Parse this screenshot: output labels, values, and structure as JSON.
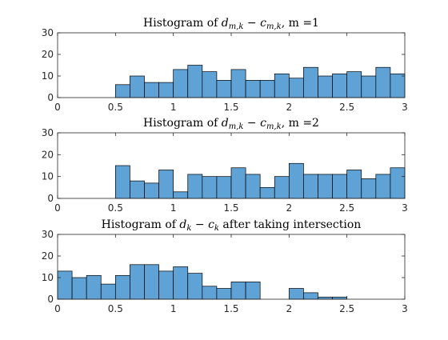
{
  "style": {
    "bar_fill": "#5fa2d6",
    "bar_edge": "#000000",
    "axis_color": "#262626",
    "background": "#ffffff"
  },
  "chart_data": [
    {
      "type": "bar",
      "title": "Histogram of d_{m,k} − c_{m,k}, m =1",
      "title_parts": {
        "pre": "Histogram of ",
        "var1": "d",
        "sub1": "m,k",
        "minus": " − ",
        "var2": "c",
        "sub2": "m,k",
        "post": ", m =1"
      },
      "bin_width": 0.125,
      "bin_edges_start": 0.5,
      "values": [
        6,
        10,
        7,
        7,
        13,
        15,
        12,
        8,
        13,
        8,
        8,
        11,
        9,
        14,
        10,
        11,
        12,
        10,
        14,
        11
      ],
      "xlim": [
        0,
        3
      ],
      "ylim": [
        0,
        30
      ],
      "xticks": [
        "0",
        "0.5",
        "1",
        "1.5",
        "2",
        "2.5",
        "3"
      ],
      "yticks": [
        "0",
        "10",
        "20",
        "30"
      ],
      "xlabel": "",
      "ylabel": ""
    },
    {
      "type": "bar",
      "title": "Histogram of d_{m,k} − c_{m,k}, m =2",
      "title_parts": {
        "pre": "Histogram of ",
        "var1": "d",
        "sub1": "m,k",
        "minus": " − ",
        "var2": "c",
        "sub2": "m,k",
        "post": ", m =2"
      },
      "bin_width": 0.125,
      "bin_edges_start": 0.5,
      "values": [
        15,
        8,
        7,
        13,
        3,
        11,
        10,
        10,
        14,
        11,
        5,
        10,
        16,
        11,
        11,
        11,
        13,
        9,
        11,
        14
      ],
      "xlim": [
        0,
        3
      ],
      "ylim": [
        0,
        30
      ],
      "xticks": [
        "0",
        "0.5",
        "1",
        "1.5",
        "2",
        "2.5",
        "3"
      ],
      "yticks": [
        "0",
        "10",
        "20",
        "30"
      ],
      "xlabel": "",
      "ylabel": ""
    },
    {
      "type": "bar",
      "title": "Histogram of d_k − c_k after taking intersection",
      "title_parts": {
        "pre": "Histogram of ",
        "var1": "d",
        "sub1": "k",
        "minus": " − ",
        "var2": "c",
        "sub2": "k",
        "post": " after taking intersection"
      },
      "bin_width": 0.125,
      "bin_edges_start": 0,
      "values": [
        13,
        10,
        11,
        7,
        11,
        16,
        16,
        13,
        15,
        12,
        6,
        5,
        8,
        8,
        0,
        0,
        5,
        3,
        1,
        1
      ],
      "xlim": [
        0,
        3
      ],
      "ylim": [
        0,
        30
      ],
      "xticks": [
        "0",
        "0.5",
        "1",
        "1.5",
        "2",
        "2.5",
        "3"
      ],
      "yticks": [
        "0",
        "10",
        "20",
        "30"
      ],
      "xlabel": "",
      "ylabel": ""
    }
  ]
}
